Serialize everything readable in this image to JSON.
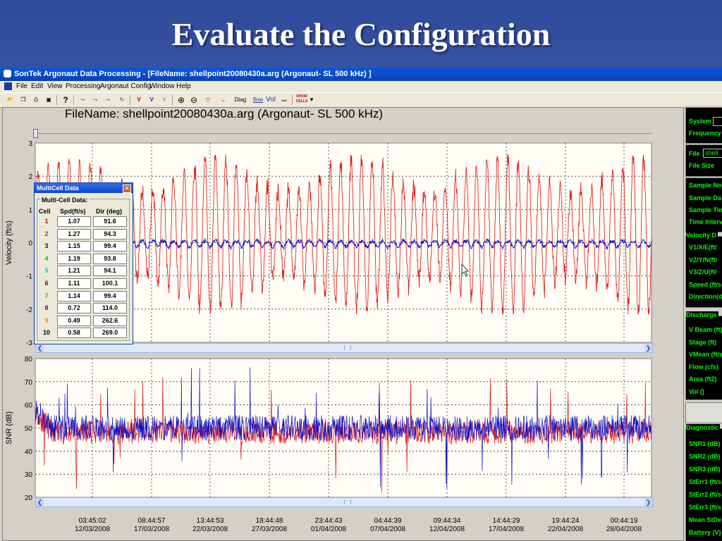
{
  "slide": {
    "title": "Evaluate the Configuration"
  },
  "window": {
    "title": "SonTek Argonaut Data Processing - [FileName: shellpoint20080430a.arg  (Argonaut- SL  500 kHz) ]"
  },
  "menu": [
    "File",
    "Edit",
    "View",
    "Processing",
    "Argonaut Config",
    "Window",
    "Help"
  ],
  "toolbar": {
    "diag": "Diag",
    "flow": "flow",
    "vol": "Vol",
    "show_cells": "SHOW CELLS"
  },
  "plot": {
    "filename": "FileName: shellpoint20080430a.arg  (Argonaut- SL  500 kHz)"
  },
  "colors": {
    "series_red": "#e01010",
    "series_blue": "#1010c8",
    "panel_green": "#00ff00"
  },
  "chart_data": [
    {
      "type": "line",
      "ylabel": "Velocity (ft/s)",
      "ylim": [
        -3,
        3
      ],
      "yticks": [
        "3",
        "2",
        "1",
        "0",
        "-1",
        "-2",
        "-3"
      ],
      "grid": true,
      "series": [
        {
          "color": "#e01010",
          "description_values": {
            "min": -2.1,
            "max": 2.6
          }
        },
        {
          "color": "#1010c8",
          "description_values": {
            "min": -0.3,
            "max": 0.15
          }
        }
      ]
    },
    {
      "type": "line",
      "ylabel": "SNR (dB)",
      "ylim": [
        20,
        80
      ],
      "yticks": [
        "80",
        "70",
        "60",
        "50",
        "40",
        "30",
        "20"
      ],
      "grid": true,
      "xticks": [
        {
          "time": "03:45:02",
          "date": "12/03/2008"
        },
        {
          "time": "08:44:57",
          "date": "17/03/2008"
        },
        {
          "time": "13:44:53",
          "date": "22/03/2008"
        },
        {
          "time": "18:44:48",
          "date": "27/03/2008"
        },
        {
          "time": "23:44:43",
          "date": "01/04/2008"
        },
        {
          "time": "04:44:39",
          "date": "07/04/2008"
        },
        {
          "time": "09:44:34",
          "date": "12/04/2008"
        },
        {
          "time": "14:44:29",
          "date": "17/04/2008"
        },
        {
          "time": "19:44:24",
          "date": "22/04/2008"
        },
        {
          "time": "00:44:19",
          "date": "28/04/2008"
        }
      ],
      "series": [
        {
          "color": "#e01010",
          "description_values": {
            "baseline": 48,
            "range": [
              30,
              80
            ]
          }
        },
        {
          "color": "#1010c8",
          "description_values": {
            "baseline": 50,
            "range": [
              28,
              70
            ]
          }
        }
      ]
    }
  ],
  "multicell": {
    "title": "MultiCell Data",
    "group_label": "Multi-Cell Data:",
    "col_cell": "Cell",
    "col_spd": "Spd(ft/s)",
    "col_dir": "Dir (deg)",
    "rows": [
      {
        "cell": "1",
        "spd": "1.07",
        "dir": "91.6",
        "color": "#cc0000"
      },
      {
        "cell": "2",
        "spd": "1.27",
        "dir": "94.3",
        "color": "#cc00cc"
      },
      {
        "cell": "3",
        "spd": "1.15",
        "dir": "99.4",
        "color": "#0000cc"
      },
      {
        "cell": "4",
        "spd": "1.19",
        "dir": "93.8",
        "color": "#00cc00"
      },
      {
        "cell": "5",
        "spd": "1.21",
        "dir": "94.1",
        "color": "#00cccc"
      },
      {
        "cell": "6",
        "spd": "1.11",
        "dir": "100.1",
        "color": "#880000"
      },
      {
        "cell": "7",
        "spd": "1.14",
        "dir": "99.4",
        "color": "#888800"
      },
      {
        "cell": "8",
        "spd": "0.72",
        "dir": "114.0",
        "color": "#660066"
      },
      {
        "cell": "9",
        "spd": "0.49",
        "dir": "262.6",
        "color": "#ff8800"
      },
      {
        "cell": "10",
        "spd": "0.58",
        "dir": "269.0",
        "color": "#000000"
      }
    ]
  },
  "sidebar": {
    "system": [
      "System",
      "Frequency"
    ],
    "file": [
      "File",
      "File Size"
    ],
    "file_value": "shell",
    "sample": [
      "Sample No",
      "Sample Da",
      "Sample Tim",
      "Time Interv"
    ],
    "velocity_title": "Velocity D",
    "velocity": [
      "V1/X/E(ft/",
      "V2/Y/N(ft/",
      "V3/Z/U(ft/",
      "Speed (ft/s",
      "Direction(d"
    ],
    "discharge_title": "Discharge",
    "discharge": [
      "V Beam (ft)",
      "Stage (ft)",
      "VMean (ft/s",
      "Flow (cfs)",
      "Area (ft2)",
      "Vol ()"
    ],
    "diagnostic_title": "Diagnostic",
    "diagnostic": [
      "SNR1 (dB)",
      "SNR2 (dB)",
      "SNR3 (dB)",
      "StErr1 (ft/s",
      "StErr2 (ft/s",
      "StErr3 (ft/s",
      "Mean StDe",
      "Battery (V)"
    ]
  }
}
